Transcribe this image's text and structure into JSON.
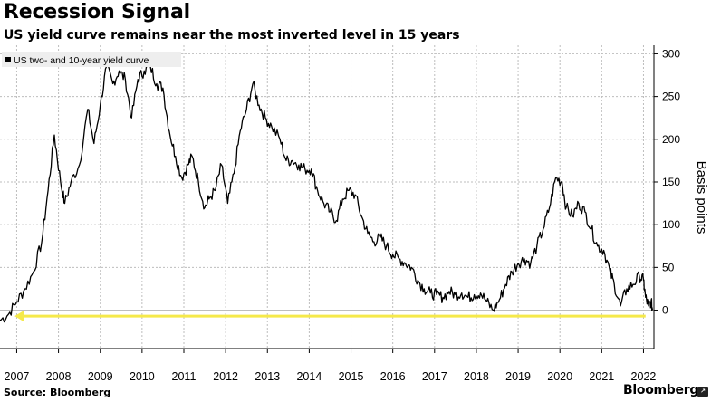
{
  "header": {
    "title": "Recession Signal",
    "subtitle": "US yield curve remains near the most inverted level in 15 years"
  },
  "footer": {
    "source": "Source: Bloomberg",
    "brand": "Bloomberg",
    "brand_badge": "↗"
  },
  "colors": {
    "line": "#000000",
    "grid": "#bdbdbd",
    "arrow": "#f5e94a",
    "legend_bg": "#eeeeee"
  },
  "chart_data": {
    "type": "line",
    "ylabel": "Basis points",
    "ylim": [
      -45,
      310
    ],
    "xlim": [
      2006.6,
      2022.25
    ],
    "yticks": [
      0,
      50,
      100,
      150,
      200,
      250,
      300
    ],
    "xticks": [
      2007,
      2008,
      2009,
      2010,
      2011,
      2012,
      2013,
      2014,
      2015,
      2016,
      2017,
      2018,
      2019,
      2020,
      2021,
      2022
    ],
    "xtick_labels": [
      "2007",
      "2008",
      "2009",
      "2010",
      "2011",
      "2012",
      "2013",
      "2014",
      "2015",
      "2016",
      "2017",
      "2018",
      "2019",
      "2020",
      "2021",
      "2022"
    ],
    "grid": true,
    "legend_position": "top-left",
    "series": [
      {
        "name": "US two- and 10-year yield curve",
        "x": [
          2006.6,
          2006.8,
          2007.0,
          2007.2,
          2007.4,
          2007.6,
          2007.75,
          2007.9,
          2008.05,
          2008.15,
          2008.3,
          2008.5,
          2008.7,
          2008.85,
          2009.0,
          2009.15,
          2009.3,
          2009.45,
          2009.6,
          2009.75,
          2009.9,
          2010.05,
          2010.2,
          2010.35,
          2010.5,
          2010.65,
          2010.8,
          2010.95,
          2011.1,
          2011.2,
          2011.35,
          2011.5,
          2011.6,
          2011.75,
          2011.9,
          2012.05,
          2012.2,
          2012.35,
          2012.5,
          2012.65,
          2012.8,
          2012.95,
          2013.1,
          2013.3,
          2013.45,
          2013.6,
          2013.75,
          2013.9,
          2014.05,
          2014.2,
          2014.35,
          2014.5,
          2014.65,
          2014.8,
          2014.95,
          2015.1,
          2015.25,
          2015.4,
          2015.55,
          2015.7,
          2015.85,
          2016.0,
          2016.15,
          2016.3,
          2016.45,
          2016.6,
          2016.75,
          2016.9,
          2017.05,
          2017.2,
          2017.35,
          2017.5,
          2017.65,
          2017.8,
          2017.95,
          2018.1,
          2018.25,
          2018.4,
          2018.55,
          2018.7,
          2018.85,
          2019.0,
          2019.15,
          2019.3,
          2019.45,
          2019.6,
          2019.75,
          2019.9,
          2020.05,
          2020.15,
          2020.3,
          2020.45,
          2020.6,
          2020.75,
          2020.9,
          2021.05,
          2021.2,
          2021.3,
          2021.45,
          2021.6,
          2021.75,
          2021.9,
          2022.0,
          2022.05,
          2022.12,
          2022.18,
          2022.22
        ],
        "values": [
          -12,
          -5,
          10,
          25,
          45,
          80,
          140,
          205,
          150,
          125,
          150,
          170,
          235,
          195,
          240,
          285,
          265,
          280,
          270,
          225,
          270,
          280,
          285,
          265,
          260,
          210,
          180,
          155,
          170,
          180,
          150,
          120,
          130,
          140,
          170,
          125,
          160,
          210,
          235,
          265,
          240,
          225,
          215,
          200,
          175,
          175,
          170,
          165,
          165,
          140,
          125,
          115,
          105,
          130,
          140,
          135,
          110,
          90,
          80,
          85,
          75,
          65,
          60,
          55,
          50,
          35,
          25,
          20,
          18,
          15,
          22,
          18,
          20,
          15,
          18,
          20,
          10,
          0,
          12,
          30,
          45,
          55,
          60,
          55,
          75,
          95,
          120,
          155,
          150,
          120,
          110,
          125,
          115,
          95,
          75,
          70,
          45,
          30,
          5,
          25,
          30,
          40,
          35,
          15,
          5,
          10,
          0
        ]
      }
    ],
    "annotations": [
      {
        "type": "arrow",
        "x_from": 2022.05,
        "x_to": 2006.95,
        "y": -7
      }
    ]
  }
}
